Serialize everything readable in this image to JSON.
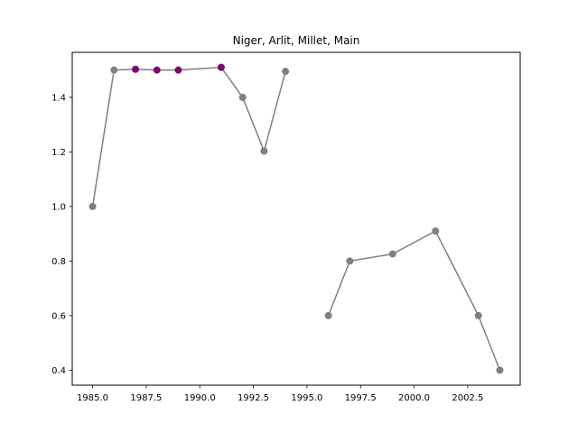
{
  "chart_data": {
    "type": "line",
    "title": "Niger, Arlit, Millet, Main",
    "xlabel": "",
    "ylabel": "",
    "xlim": [
      1984.05,
      2004.95
    ],
    "ylim": [
      0.345,
      1.565
    ],
    "x_ticks": [
      1985.0,
      1987.5,
      1990.0,
      1992.5,
      1995.0,
      1997.5,
      2000.0,
      2002.5
    ],
    "x_tick_labels": [
      "1985.0",
      "1987.5",
      "1990.0",
      "1992.5",
      "1995.0",
      "1997.5",
      "2000.0",
      "2002.5"
    ],
    "y_ticks": [
      0.4,
      0.6,
      0.8,
      1.0,
      1.2,
      1.4
    ],
    "y_tick_labels": [
      "0.4",
      "0.6",
      "0.8",
      "1.0",
      "1.2",
      "1.4"
    ],
    "grid": false,
    "line_color": "#808080",
    "marker_color": "#808080",
    "highlight_color": "#800080",
    "segments": [
      [
        {
          "x": 1985,
          "y": 1.0,
          "highlight": false
        },
        {
          "x": 1986,
          "y": 1.5,
          "highlight": false
        },
        {
          "x": 1987,
          "y": 1.503,
          "highlight": true
        },
        {
          "x": 1988,
          "y": 1.5,
          "highlight": true
        },
        {
          "x": 1989,
          "y": 1.5,
          "highlight": true
        },
        {
          "x": 1991,
          "y": 1.51,
          "highlight": true
        },
        {
          "x": 1992,
          "y": 1.4,
          "highlight": false
        },
        {
          "x": 1993,
          "y": 1.203,
          "highlight": false
        },
        {
          "x": 1994,
          "y": 1.495,
          "highlight": false
        }
      ],
      [
        {
          "x": 1996,
          "y": 0.6,
          "highlight": false
        },
        {
          "x": 1997,
          "y": 0.8,
          "highlight": false
        },
        {
          "x": 1999,
          "y": 0.826,
          "highlight": false
        },
        {
          "x": 2001,
          "y": 0.91,
          "highlight": false
        },
        {
          "x": 2003,
          "y": 0.6,
          "highlight": false
        },
        {
          "x": 2004,
          "y": 0.4,
          "highlight": false
        }
      ]
    ]
  }
}
